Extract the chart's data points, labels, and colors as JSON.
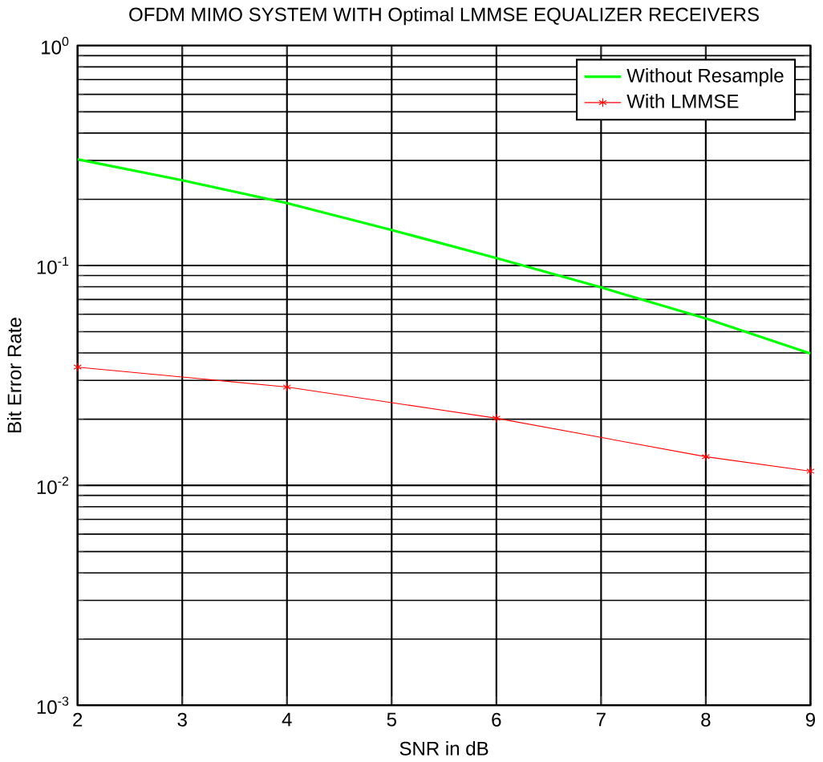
{
  "chart_data": {
    "type": "line",
    "title": "OFDM MIMO SYSTEM WITH Optimal LMMSE EQUALIZER RECEIVERS",
    "xlabel": "SNR in dB",
    "ylabel": "Bit Error Rate",
    "log": "y",
    "grid": true,
    "legend": "top right",
    "xlim": [
      2,
      9
    ],
    "xticks": [
      2,
      3,
      4,
      5,
      6,
      7,
      8,
      9
    ],
    "ylim": [
      0.001,
      1
    ],
    "yticks": [
      {
        "value": 0.001,
        "label": "10$^{-3}$"
      },
      {
        "value": 0.01,
        "label": "10$^{-2}$"
      },
      {
        "value": 0.1,
        "label": "10$^{-1}$"
      },
      {
        "value": 1,
        "label": "10$^{0}$"
      }
    ],
    "series": [
      {
        "name": "Without Resample",
        "color": "#00ff00",
        "marker": "none",
        "x": [
          2,
          3,
          4,
          5,
          6,
          7,
          8,
          9
        ],
        "values": [
          0.304,
          0.244,
          0.192,
          0.145,
          0.108,
          0.0795,
          0.0574,
          0.0398
        ]
      },
      {
        "name": "With LMMSE",
        "color": "#ff0000",
        "marker": "cross",
        "x": [
          2,
          4,
          6,
          8,
          9
        ],
        "values": [
          0.0345,
          0.028,
          0.0202,
          0.0135,
          0.0116
        ]
      }
    ]
  }
}
